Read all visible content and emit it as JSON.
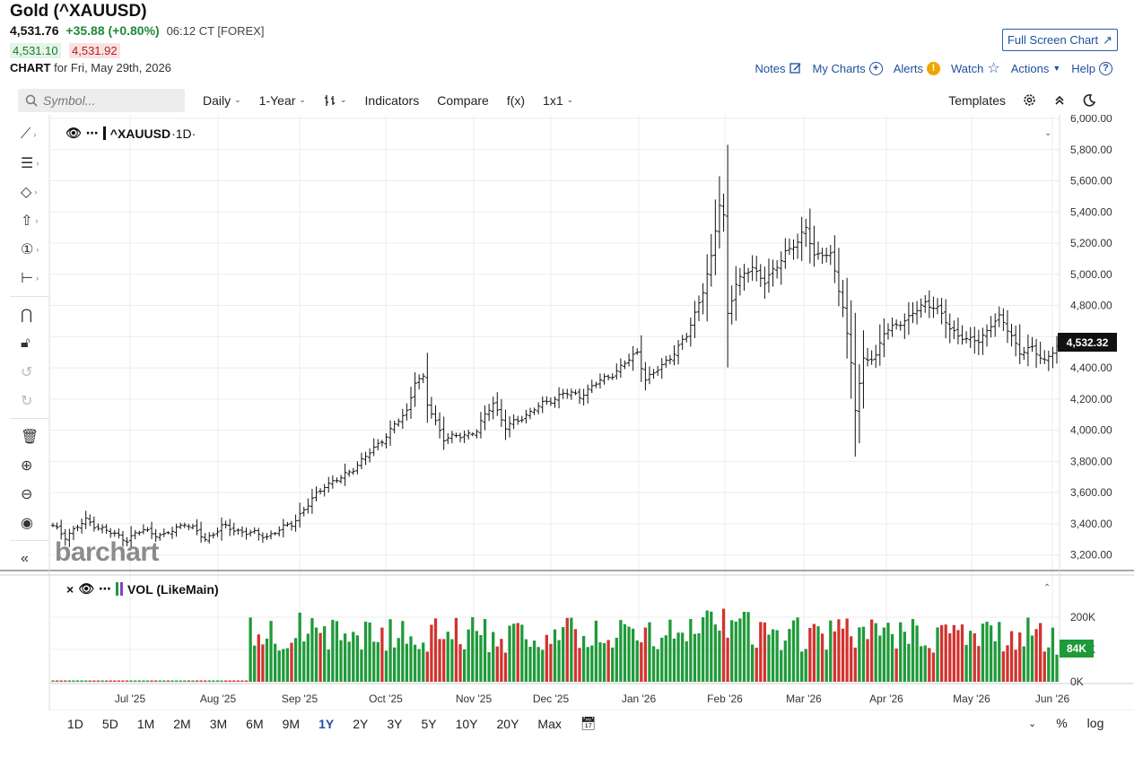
{
  "header": {
    "title": "Gold (^XAUUSD)",
    "last": "4,531.76",
    "change": "+35.88 (+0.80%)",
    "time": "06:12 CT [FOREX]",
    "bid": "4,531.10",
    "ask": "4,531.92",
    "chart_label": "CHART",
    "chart_for": "for Fri, May 29th, 2026",
    "fullscreen": "Full Screen Chart"
  },
  "links": {
    "notes": "Notes",
    "my_charts": "My Charts",
    "alerts": "Alerts",
    "watch": "Watch",
    "actions": "Actions",
    "help": "Help"
  },
  "toolbar": {
    "search_placeholder": "Symbol...",
    "interval": "Daily",
    "period": "1-Year",
    "indicators": "Indicators",
    "compare": "Compare",
    "fx": "f(x)",
    "layout": "1x1",
    "templates": "Templates"
  },
  "panes": {
    "main_legend": "^XAUUSD",
    "main_interval": "·1D·",
    "vol_legend": "VOL (LikeMain)",
    "watermark": "barchart"
  },
  "badges": {
    "last_price": "4,532.32",
    "last_volume": "84K"
  },
  "ranges": [
    "1D",
    "5D",
    "1M",
    "2M",
    "3M",
    "6M",
    "9M",
    "1Y",
    "2Y",
    "3Y",
    "5Y",
    "10Y",
    "20Y",
    "Max"
  ],
  "active_range": "1Y",
  "bottom_right": {
    "percent": "%",
    "log": "log"
  },
  "colors": {
    "up": "#1f9a3a",
    "down": "#d2332f",
    "price_line": "#111111",
    "accent": "#1f4f9c"
  },
  "chart_data": {
    "type": "ohlc-bar",
    "symbol": "^XAUUSD",
    "y_axis": {
      "range": [
        3100,
        6000
      ],
      "ticks": [
        "3,200.00",
        "3,400.00",
        "3,600.00",
        "3,800.00",
        "4,000.00",
        "4,200.00",
        "4,400.00",
        "4,600.00",
        "4,800.00",
        "5,000.00",
        "5,200.00",
        "5,400.00",
        "5,600.00",
        "5,800.00",
        "6,000.00"
      ]
    },
    "x_axis": {
      "ticks": [
        "Jul '25",
        "Aug '25",
        "Sep '25",
        "Oct '25",
        "Nov '25",
        "Dec '25",
        "Jan '26",
        "Feb '26",
        "Mar '26",
        "Apr '26",
        "May '26",
        "Jun '26"
      ]
    },
    "volume_axis": {
      "range": [
        0,
        250000
      ],
      "ticks": [
        "0K",
        "100K",
        "200K"
      ]
    },
    "grid": true,
    "price_anchors": [
      [
        0,
        3380
      ],
      [
        3,
        3320
      ],
      [
        8,
        3420
      ],
      [
        14,
        3340
      ],
      [
        18,
        3300
      ],
      [
        22,
        3360
      ],
      [
        27,
        3320
      ],
      [
        32,
        3410
      ],
      [
        37,
        3300
      ],
      [
        41,
        3380
      ],
      [
        46,
        3350
      ],
      [
        52,
        3320
      ],
      [
        58,
        3400
      ],
      [
        62,
        3520
      ],
      [
        66,
        3650
      ],
      [
        70,
        3690
      ],
      [
        74,
        3780
      ],
      [
        78,
        3880
      ],
      [
        82,
        4000
      ],
      [
        86,
        4120
      ],
      [
        88,
        4320
      ],
      [
        90,
        4330
      ],
      [
        91,
        4160
      ],
      [
        95,
        3950
      ],
      [
        99,
        3960
      ],
      [
        103,
        4000
      ],
      [
        107,
        4180
      ],
      [
        110,
        4020
      ],
      [
        113,
        4060
      ],
      [
        117,
        4140
      ],
      [
        121,
        4190
      ],
      [
        124,
        4240
      ],
      [
        128,
        4220
      ],
      [
        132,
        4300
      ],
      [
        136,
        4360
      ],
      [
        140,
        4450
      ],
      [
        142,
        4500
      ],
      [
        144,
        4330
      ],
      [
        146,
        4360
      ],
      [
        150,
        4470
      ],
      [
        154,
        4600
      ],
      [
        156,
        4750
      ],
      [
        158,
        4900
      ],
      [
        160,
        5100
      ],
      [
        162,
        5450
      ],
      [
        163,
        5380
      ],
      [
        164,
        4750
      ],
      [
        166,
        4940
      ],
      [
        170,
        5050
      ],
      [
        173,
        4950
      ],
      [
        176,
        5050
      ],
      [
        178,
        5150
      ],
      [
        181,
        5200
      ],
      [
        183,
        5300
      ],
      [
        185,
        5130
      ],
      [
        189,
        5120
      ],
      [
        192,
        4800
      ],
      [
        194,
        4430
      ],
      [
        195,
        4130
      ],
      [
        197,
        4450
      ],
      [
        200,
        4480
      ],
      [
        202,
        4620
      ],
      [
        205,
        4680
      ],
      [
        208,
        4720
      ],
      [
        212,
        4820
      ],
      [
        215,
        4780
      ],
      [
        218,
        4650
      ],
      [
        222,
        4580
      ],
      [
        225,
        4570
      ],
      [
        228,
        4680
      ],
      [
        230,
        4720
      ],
      [
        233,
        4610
      ],
      [
        235,
        4500
      ],
      [
        238,
        4520
      ],
      [
        241,
        4450
      ],
      [
        244,
        4530
      ]
    ],
    "volume_profile": "low ~5K until mid-Aug '25, then ~80K-230K daily with mixed up/down bars; last bar 84K"
  }
}
